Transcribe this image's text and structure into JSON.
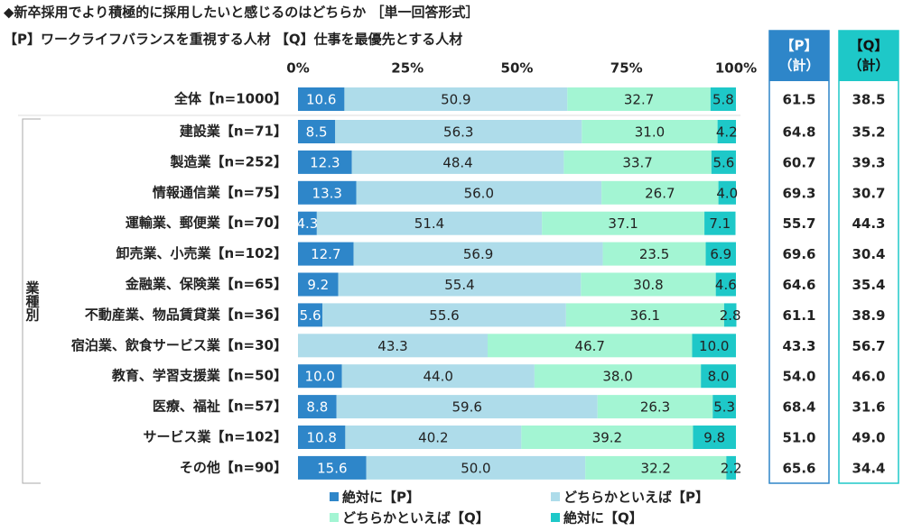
{
  "chart_data": {
    "type": "stacked-bar-horizontal",
    "title": "◆新卒採用でより積極的に採用したいと感じるのはどちらか ［単一回答形式］",
    "subtitle": "【P】ワークライフバランスを重視する人材 【Q】仕事を最優先とする人材",
    "group_label": "業種別",
    "categories": [
      "全体【n=1000】",
      "建設業【n=71】",
      "製造業【n=252】",
      "情報通信業【n=75】",
      "運輸業、郵便業【n=70】",
      "卸売業、小売業【n=102】",
      "金融業、保険業【n=65】",
      "不動産業、物品賃貸業【n=36】",
      "宿泊業、飲食サービス業【n=30】",
      "教育、学習支援業【n=50】",
      "医療、福祉【n=57】",
      "サービス業【n=102】",
      "その他【n=90】"
    ],
    "xlim": [
      0,
      100
    ],
    "xticks": [
      {
        "value": 0,
        "label": "0%"
      },
      {
        "value": 25,
        "label": "25%"
      },
      {
        "value": 50,
        "label": "50%"
      },
      {
        "value": 75,
        "label": "75%"
      },
      {
        "value": 100,
        "label": "100%"
      }
    ],
    "series": [
      {
        "name": "絶対に【P】",
        "color": "#2e86c9",
        "label_color": "#ffffff",
        "values": [
          10.6,
          8.5,
          12.3,
          13.3,
          4.3,
          12.7,
          9.2,
          5.6,
          0,
          10.0,
          8.8,
          10.8,
          15.6
        ],
        "value_labels": [
          "10.6",
          "8.5",
          "12.3",
          "13.3",
          "4.3",
          "12.7",
          "9.2",
          "5.6",
          null,
          "10.0",
          "8.8",
          "10.8",
          "15.6"
        ]
      },
      {
        "name": "どちらかといえば【P】",
        "color": "#aedcea",
        "label_color": "#222222",
        "values": [
          50.9,
          56.3,
          48.4,
          56.0,
          51.4,
          56.9,
          55.4,
          55.6,
          43.3,
          44.0,
          59.6,
          40.2,
          50.0
        ],
        "value_labels": [
          "50.9",
          "56.3",
          "48.4",
          "56.0",
          "51.4",
          "56.9",
          "55.4",
          "55.6",
          "43.3",
          "44.0",
          "59.6",
          "40.2",
          "50.0"
        ]
      },
      {
        "name": "どちらかといえば【Q】",
        "color": "#a3f5d3",
        "label_color": "#222222",
        "values": [
          32.7,
          31.0,
          33.7,
          26.7,
          37.1,
          23.5,
          30.8,
          36.1,
          46.7,
          38.0,
          26.3,
          39.2,
          32.2
        ],
        "value_labels": [
          "32.7",
          "31.0",
          "33.7",
          "26.7",
          "37.1",
          "23.5",
          "30.8",
          "36.1",
          "46.7",
          "38.0",
          "26.3",
          "39.2",
          "32.2"
        ]
      },
      {
        "name": "絶対に【Q】",
        "color": "#1ec8c8",
        "label_color": "#222222",
        "values": [
          5.8,
          4.2,
          5.6,
          4.0,
          7.1,
          6.9,
          4.6,
          2.8,
          10.0,
          8.0,
          5.3,
          9.8,
          2.2
        ],
        "value_labels": [
          "5.8",
          "4.2",
          "5.6",
          "4.0",
          "7.1",
          "6.9",
          "4.6",
          "2.8",
          "10.0",
          "8.0",
          "5.3",
          "9.8",
          "2.2"
        ]
      }
    ],
    "totals": [
      {
        "header": [
          "【P】",
          "（計）"
        ],
        "color": "#2e86c9",
        "header_text_color": "#ffffff",
        "values": [
          "61.5",
          "64.8",
          "60.7",
          "69.3",
          "55.7",
          "69.6",
          "64.6",
          "61.1",
          "43.3",
          "54.0",
          "68.4",
          "51.0",
          "65.6"
        ]
      },
      {
        "header": [
          "【Q】",
          "（計）"
        ],
        "color": "#1ec8c8",
        "header_text_color": "#111111",
        "values": [
          "38.5",
          "35.2",
          "39.3",
          "30.7",
          "44.3",
          "30.4",
          "35.4",
          "38.9",
          "56.7",
          "46.0",
          "31.6",
          "49.0",
          "34.4"
        ]
      }
    ]
  }
}
